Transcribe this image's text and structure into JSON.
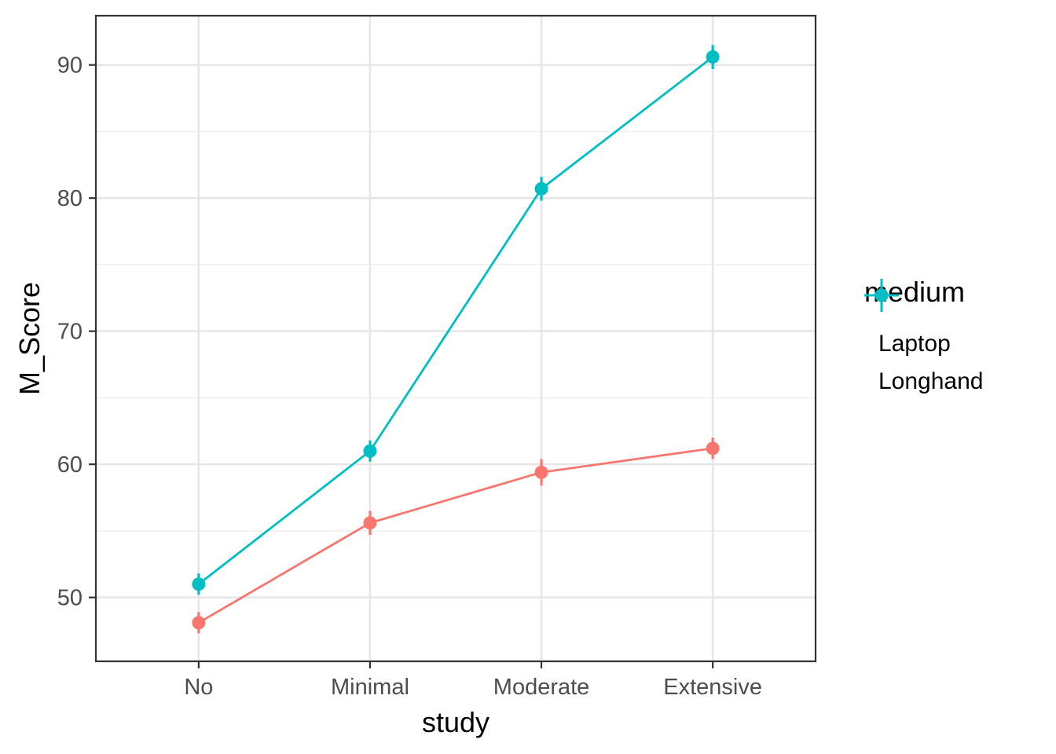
{
  "chart_data": {
    "type": "line",
    "title": "",
    "xlabel": "study",
    "ylabel": "M_Score",
    "categories": [
      "No",
      "Minimal",
      "Moderate",
      "Extensive"
    ],
    "series": [
      {
        "name": "Laptop",
        "color": "#F8766D",
        "values": [
          48.1,
          55.6,
          59.4,
          61.2
        ],
        "error": [
          0.8,
          0.9,
          1.0,
          0.8
        ]
      },
      {
        "name": "Longhand",
        "color": "#00BFC4",
        "values": [
          51.0,
          61.0,
          80.7,
          90.6
        ],
        "error": [
          0.8,
          0.8,
          0.9,
          0.9
        ]
      }
    ],
    "y_ticks": [
      50,
      60,
      70,
      80,
      90
    ],
    "y_minor_ticks": [
      55,
      65,
      75,
      85
    ],
    "ylim": [
      45.2,
      93.7
    ],
    "legend": {
      "title": "medium",
      "position": "right"
    },
    "grid": true,
    "marker": "point-with-error-bar",
    "colors": {
      "panel_border": "#333333",
      "grid_major": "#E6E6E6",
      "grid_minor": "#F2F2F2",
      "tick_mark": "#333333",
      "tick_label": "#4D4D4D",
      "panel_background": "#FFFFFF"
    }
  }
}
